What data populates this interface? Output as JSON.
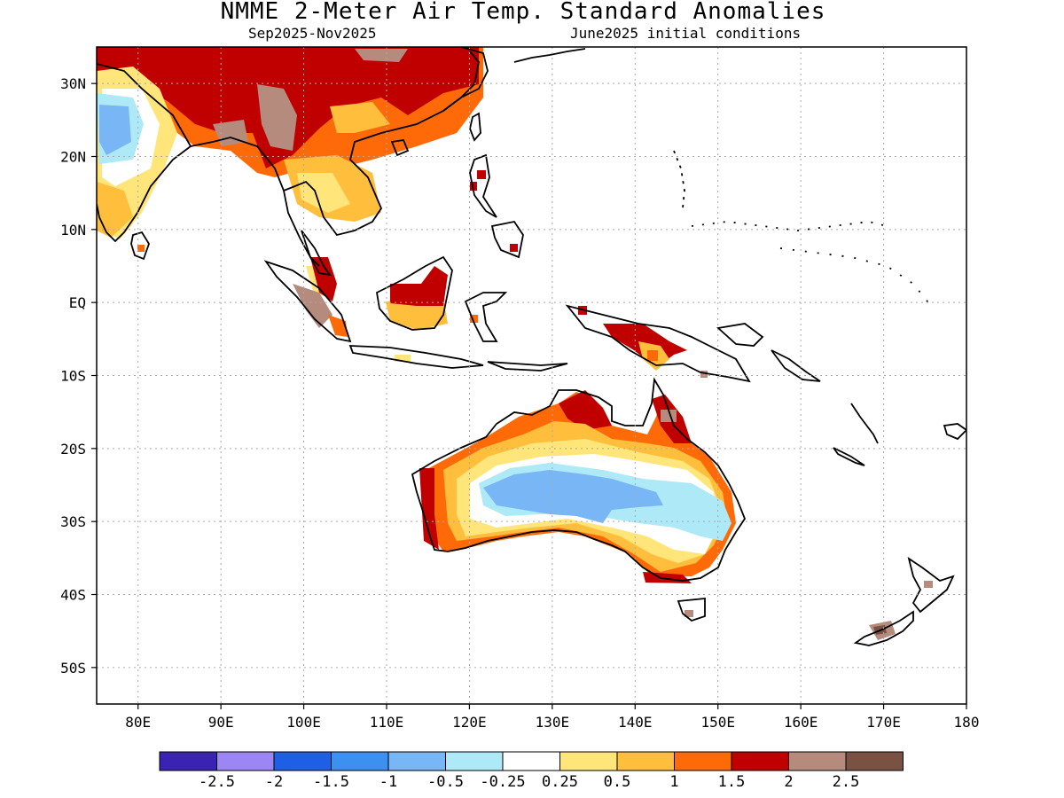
{
  "header": {
    "title": "NMME 2-Meter Air Temp. Standard Anomalies",
    "period": "Sep2025-Nov2025",
    "init": "June2025 initial conditions"
  },
  "map": {
    "lon_range": [
      75,
      180
    ],
    "lat_range": [
      -55,
      35
    ],
    "lon_ticks": [
      {
        "value": 80,
        "label": "80E"
      },
      {
        "value": 90,
        "label": "90E"
      },
      {
        "value": 100,
        "label": "100E"
      },
      {
        "value": 110,
        "label": "110E"
      },
      {
        "value": 120,
        "label": "120E"
      },
      {
        "value": 130,
        "label": "130E"
      },
      {
        "value": 140,
        "label": "140E"
      },
      {
        "value": 150,
        "label": "150E"
      },
      {
        "value": 160,
        "label": "160E"
      },
      {
        "value": 170,
        "label": "170E"
      },
      {
        "value": 180,
        "label": "180"
      }
    ],
    "lat_ticks": [
      {
        "value": 30,
        "label": "30N"
      },
      {
        "value": 20,
        "label": "20N"
      },
      {
        "value": 10,
        "label": "10N"
      },
      {
        "value": 0,
        "label": "EQ"
      },
      {
        "value": -10,
        "label": "10S"
      },
      {
        "value": -20,
        "label": "20S"
      },
      {
        "value": -30,
        "label": "30S"
      },
      {
        "value": -40,
        "label": "40S"
      },
      {
        "value": -50,
        "label": "50S"
      }
    ],
    "grid": true
  },
  "colorbar": {
    "colors": [
      "#3a23b3",
      "#9b86f4",
      "#1f5fe6",
      "#3d90f0",
      "#79b6f6",
      "#aee9f7",
      "#ffffff",
      "#ffe57a",
      "#ffbe3c",
      "#ff6a09",
      "#c00000",
      "#b58b7e",
      "#7a5243"
    ],
    "labels": [
      "-2.5",
      "-2",
      "-1.5",
      "-1",
      "-0.5",
      "-0.25",
      "0.25",
      "0.5",
      "1",
      "1.5",
      "2",
      "2.5"
    ]
  }
}
